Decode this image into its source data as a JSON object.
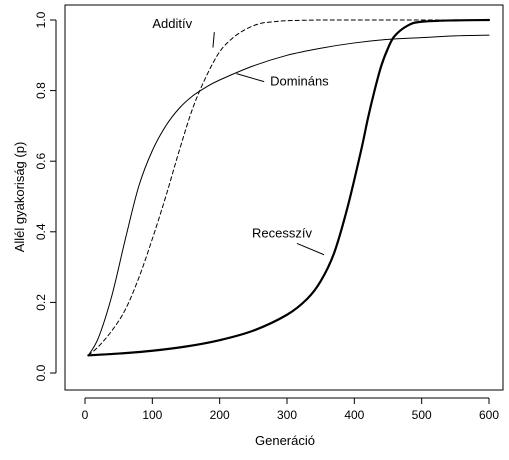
{
  "chart_data": {
    "type": "line",
    "title": "",
    "xlabel": "Generáció",
    "ylabel": "Allél gyakoriság (p)",
    "xlim": [
      0,
      600
    ],
    "ylim": [
      0,
      1.0
    ],
    "xticks": [
      0,
      100,
      200,
      300,
      400,
      500,
      600
    ],
    "yticks": [
      0.0,
      0.2,
      0.4,
      0.6,
      0.8,
      1.0
    ],
    "xtick_labels": [
      "0",
      "100",
      "200",
      "300",
      "400",
      "500",
      "600"
    ],
    "ytick_labels": [
      "0.0",
      "0.2",
      "0.4",
      "0.6",
      "0.8",
      "1.0"
    ],
    "grid": false,
    "legend": "none",
    "series": [
      {
        "name": "Additív",
        "style": "dashed",
        "color": "#000000",
        "x": [
          5,
          20,
          40,
          60,
          80,
          100,
          120,
          140,
          160,
          180,
          200,
          220,
          240,
          260,
          280,
          300,
          350,
          400,
          450,
          500,
          550,
          600
        ],
        "y": [
          0.05,
          0.075,
          0.12,
          0.18,
          0.27,
          0.38,
          0.5,
          0.63,
          0.75,
          0.84,
          0.91,
          0.95,
          0.975,
          0.99,
          0.995,
          0.998,
          1.0,
          1.0,
          1.0,
          1.0,
          1.0,
          1.0
        ]
      },
      {
        "name": "Domináns",
        "style": "solid-thin",
        "color": "#000000",
        "x": [
          5,
          20,
          40,
          60,
          80,
          100,
          120,
          140,
          160,
          180,
          200,
          250,
          300,
          350,
          400,
          450,
          500,
          550,
          600
        ],
        "y": [
          0.05,
          0.1,
          0.22,
          0.38,
          0.53,
          0.63,
          0.7,
          0.75,
          0.785,
          0.81,
          0.83,
          0.87,
          0.9,
          0.92,
          0.935,
          0.945,
          0.95,
          0.955,
          0.957
        ]
      },
      {
        "name": "Recesszív",
        "style": "solid-thick",
        "color": "#000000",
        "x": [
          5,
          50,
          100,
          150,
          200,
          250,
          300,
          330,
          350,
          370,
          390,
          410,
          420,
          430,
          440,
          450,
          460,
          480,
          500,
          550,
          600
        ],
        "y": [
          0.05,
          0.055,
          0.063,
          0.075,
          0.093,
          0.12,
          0.165,
          0.21,
          0.26,
          0.34,
          0.47,
          0.63,
          0.72,
          0.8,
          0.87,
          0.92,
          0.955,
          0.985,
          0.995,
          0.999,
          1.0
        ]
      }
    ],
    "annotations": [
      {
        "text": "Additív",
        "series": "Additív",
        "label_x": 100,
        "label_y": 0.977,
        "point_x": 190,
        "point_y": 0.922
      },
      {
        "text": "Domináns",
        "series": "Domináns",
        "label_x": 275,
        "label_y": 0.814,
        "point_x": 225,
        "point_y": 0.848
      },
      {
        "text": "Recesszív",
        "series": "Recesszív",
        "label_x": 248,
        "label_y": 0.384,
        "point_x": 355,
        "point_y": 0.335
      }
    ]
  }
}
